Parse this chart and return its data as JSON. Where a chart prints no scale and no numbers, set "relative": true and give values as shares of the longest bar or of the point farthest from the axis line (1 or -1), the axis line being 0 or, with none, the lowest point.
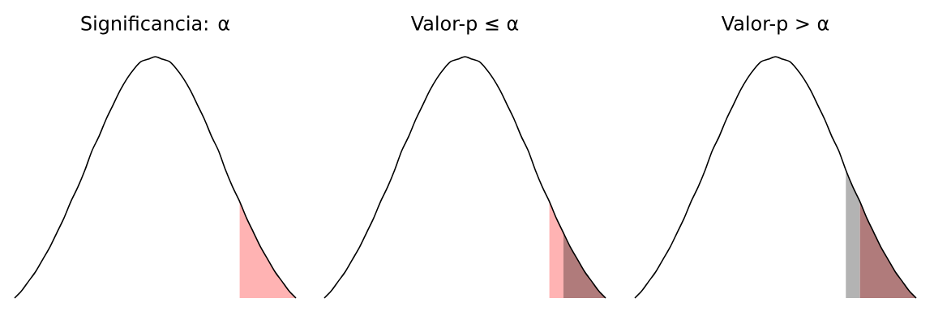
{
  "chart_data": [
    {
      "type": "line",
      "title": "Significancia: α",
      "relative": true,
      "categories": [
        null,
        null,
        null,
        null,
        null,
        null,
        null,
        null,
        null,
        null,
        null,
        null,
        null,
        null,
        null,
        null,
        null,
        null,
        null,
        null,
        null,
        null,
        null,
        null,
        null,
        null,
        null,
        null,
        null,
        null,
        null,
        null,
        null,
        null,
        null,
        null,
        null,
        null,
        null,
        null,
        null
      ],
      "series": [
        {
          "type": "area",
          "color": "#ffb3b3",
          "values": [
            null,
            null,
            null,
            null,
            null,
            null,
            null,
            null,
            null,
            null,
            null,
            null,
            null,
            null,
            null,
            null,
            null,
            null,
            null,
            null,
            null,
            null,
            null,
            null,
            null,
            null,
            null,
            null,
            null,
            null,
            null,
            null,
            0.4,
            0.33,
            0.27,
            0.21,
            0.16,
            0.11,
            0.07,
            0.03,
            0
          ]
        },
        {
          "color": "#000000",
          "values": [
            0,
            0.03,
            0.07,
            0.11,
            0.16,
            0.21,
            0.27,
            0.33,
            0.4,
            0.46,
            0.53,
            0.61,
            0.67,
            0.74,
            0.8,
            0.86,
            0.91,
            0.95,
            0.98,
            0.99,
            1,
            0.99,
            0.98,
            0.95,
            0.91,
            0.86,
            0.8,
            0.74,
            0.67,
            0.61,
            0.53,
            0.46,
            0.4,
            0.33,
            0.27,
            0.21,
            0.16,
            0.11,
            0.07,
            0.03,
            0
          ]
        }
      ]
    },
    {
      "type": "line",
      "title": "Valor-p ≤ α",
      "relative": true,
      "categories": [
        null,
        null,
        null,
        null,
        null,
        null,
        null,
        null,
        null,
        null,
        null,
        null,
        null,
        null,
        null,
        null,
        null,
        null,
        null,
        null,
        null,
        null,
        null,
        null,
        null,
        null,
        null,
        null,
        null,
        null,
        null,
        null,
        null,
        null,
        null,
        null,
        null,
        null,
        null,
        null,
        null
      ],
      "series": [
        {
          "type": "area",
          "color": "#ffb3b3",
          "values": [
            null,
            null,
            null,
            null,
            null,
            null,
            null,
            null,
            null,
            null,
            null,
            null,
            null,
            null,
            null,
            null,
            null,
            null,
            null,
            null,
            null,
            null,
            null,
            null,
            null,
            null,
            null,
            null,
            null,
            null,
            null,
            null,
            0.4,
            0.33,
            0.27,
            null,
            null,
            null,
            null,
            null,
            null
          ]
        },
        {
          "type": "area",
          "color": "#b07b7b",
          "values": [
            null,
            null,
            null,
            null,
            null,
            null,
            null,
            null,
            null,
            null,
            null,
            null,
            null,
            null,
            null,
            null,
            null,
            null,
            null,
            null,
            null,
            null,
            null,
            null,
            null,
            null,
            null,
            null,
            null,
            null,
            null,
            null,
            null,
            null,
            0.27,
            0.21,
            0.16,
            0.11,
            0.07,
            0.03,
            0
          ]
        },
        {
          "color": "#000000",
          "values": [
            0,
            0.03,
            0.07,
            0.11,
            0.16,
            0.21,
            0.27,
            0.33,
            0.4,
            0.46,
            0.53,
            0.61,
            0.67,
            0.74,
            0.8,
            0.86,
            0.91,
            0.95,
            0.98,
            0.99,
            1,
            0.99,
            0.98,
            0.95,
            0.91,
            0.86,
            0.8,
            0.74,
            0.67,
            0.61,
            0.53,
            0.46,
            0.4,
            0.33,
            0.27,
            0.21,
            0.16,
            0.11,
            0.07,
            0.03,
            0
          ]
        }
      ]
    },
    {
      "type": "line",
      "title": "Valor-p > α",
      "relative": true,
      "categories": [
        null,
        null,
        null,
        null,
        null,
        null,
        null,
        null,
        null,
        null,
        null,
        null,
        null,
        null,
        null,
        null,
        null,
        null,
        null,
        null,
        null,
        null,
        null,
        null,
        null,
        null,
        null,
        null,
        null,
        null,
        null,
        null,
        null,
        null,
        null,
        null,
        null,
        null,
        null,
        null,
        null
      ],
      "series": [
        {
          "type": "area",
          "color": "#b3b3b3",
          "values": [
            null,
            null,
            null,
            null,
            null,
            null,
            null,
            null,
            null,
            null,
            null,
            null,
            null,
            null,
            null,
            null,
            null,
            null,
            null,
            null,
            null,
            null,
            null,
            null,
            null,
            null,
            null,
            null,
            null,
            null,
            0.53,
            0.46,
            0.4,
            null,
            null,
            null,
            null,
            null,
            null,
            null,
            null
          ]
        },
        {
          "type": "area",
          "color": "#b07b7b",
          "values": [
            null,
            null,
            null,
            null,
            null,
            null,
            null,
            null,
            null,
            null,
            null,
            null,
            null,
            null,
            null,
            null,
            null,
            null,
            null,
            null,
            null,
            null,
            null,
            null,
            null,
            null,
            null,
            null,
            null,
            null,
            null,
            null,
            0.4,
            0.33,
            0.27,
            0.21,
            0.16,
            0.11,
            0.07,
            0.03,
            0
          ]
        },
        {
          "color": "#000000",
          "values": [
            0,
            0.03,
            0.07,
            0.11,
            0.16,
            0.21,
            0.27,
            0.33,
            0.4,
            0.46,
            0.53,
            0.61,
            0.67,
            0.74,
            0.8,
            0.86,
            0.91,
            0.95,
            0.98,
            0.99,
            1,
            0.99,
            0.98,
            0.95,
            0.91,
            0.86,
            0.8,
            0.74,
            0.67,
            0.61,
            0.53,
            0.46,
            0.4,
            0.33,
            0.27,
            0.21,
            0.16,
            0.11,
            0.07,
            0.03,
            0
          ]
        }
      ]
    }
  ]
}
